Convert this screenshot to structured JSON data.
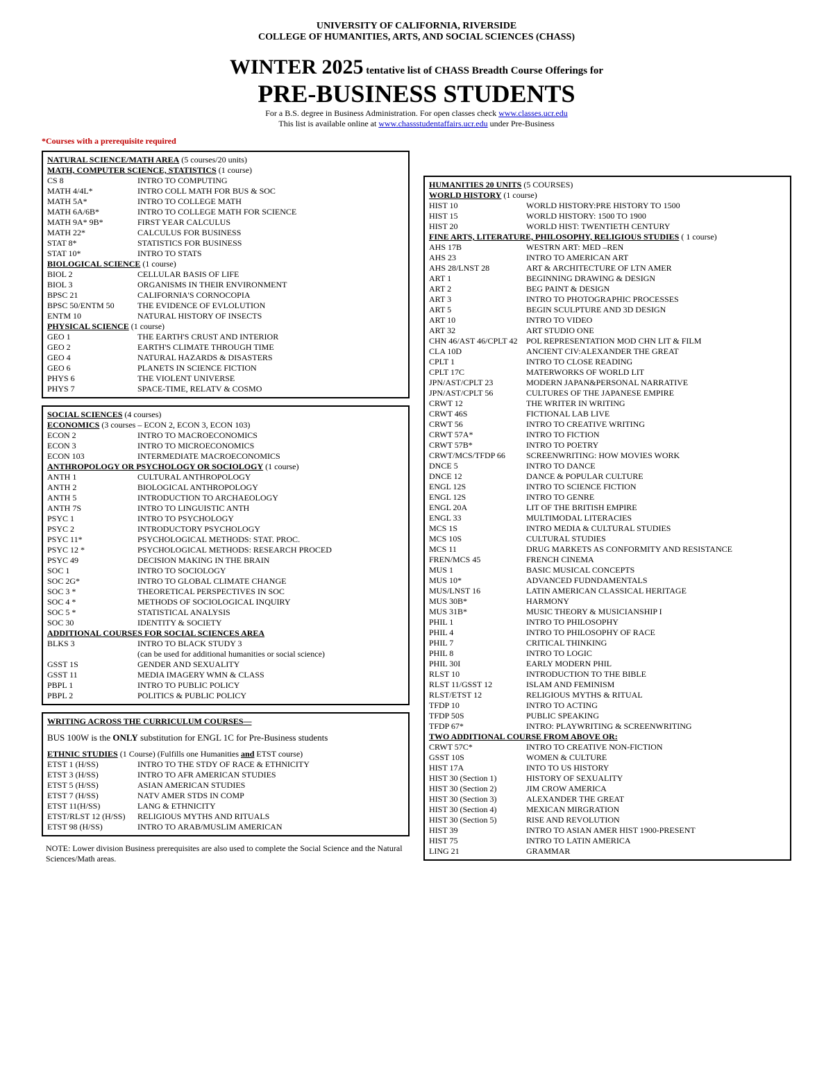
{
  "header": {
    "university": "UNIVERSITY OF CALIFORNIA, RIVERSIDE",
    "college": "COLLEGE OF HUMANITIES, ARTS, AND SOCIAL SCIENCES (CHASS)",
    "term_big": "WINTER 2025",
    "term_rest": " tentative list of CHASS Breadth Course Offerings for",
    "title": "PRE-BUSINESS STUDENTS",
    "sub1_a": "For a B.S. degree in Business Administration.  For open classes check ",
    "sub1_link": "www.classes.ucr.edu",
    "sub2_a": "This list is available online at ",
    "sub2_link": "www.chassstudentaffairs.ucr.edu",
    "sub2_b": " under Pre-Business",
    "prereq_note": "*Courses with a prerequisite required"
  },
  "left": {
    "box1": {
      "area_head": "NATURAL SCIENCE/MATH AREA",
      "area_head_note": " (5 courses/20 units)",
      "sec1_head": "MATH, COMPUTER SCIENCE, STATISTICS",
      "sec1_note": " (1 course)",
      "sec1_rows": [
        {
          "c": "CS  8",
          "t": "INTRO TO COMPUTING"
        },
        {
          "c": "MATH 4/4L*",
          "t": "INTRO COLL MATH FOR BUS & SOC"
        },
        {
          "c": "MATH 5A*",
          "t": "INTRO TO COLLEGE MATH"
        },
        {
          "c": "MATH 6A/6B*",
          "t": "INTRO TO COLLEGE MATH FOR SCIENCE"
        },
        {
          "c": "MATH 9A* 9B*",
          "t": "FIRST YEAR CALCULUS"
        },
        {
          "c": "MATH 22*",
          "t": "CALCULUS FOR BUSINESS"
        },
        {
          "c": "STAT 8*",
          "t": "STATISTICS FOR BUSINESS"
        },
        {
          "c": "STAT 10*",
          "t": "INTRO TO STATS"
        }
      ],
      "sec2_head": "BIOLOGICAL SCIENCE",
      "sec2_note": " (1 course)",
      "sec2_rows": [
        {
          "c": "BIOL 2",
          "t": "CELLULAR BASIS OF LIFE"
        },
        {
          "c": "BIOL 3",
          "t": "ORGANISMS IN THEIR ENVIRONMENT"
        },
        {
          "c": "BPSC 21",
          "t": "CALIFORNIA'S CORNOCOPIA"
        },
        {
          "c": "BPSC 50/ENTM 50",
          "t": "THE EVIDENCE OF EVLOLUTION"
        },
        {
          "c": "ENTM 10",
          "t": "NATURAL HISTORY OF INSECTS"
        }
      ],
      "sec3_head": "PHYSICAL SCIENCE",
      "sec3_note": " (1 course)",
      "sec3_rows": [
        {
          "c": "GEO 1",
          "t": "THE EARTH'S CRUST AND INTERIOR"
        },
        {
          "c": "GEO 2",
          "t": "EARTH'S CLIMATE THROUGH TIME"
        },
        {
          "c": "GEO 4",
          "t": "NATURAL HAZARDS & DISASTERS"
        },
        {
          "c": "GEO 6",
          "t": "PLANETS IN SCIENCE FICTION"
        },
        {
          "c": "PHYS 6",
          "t": "THE VIOLENT UNIVERSE"
        },
        {
          "c": "PHYS 7",
          "t": "SPACE-TIME, RELATV & COSMO"
        }
      ]
    },
    "box2": {
      "area_head": "SOCIAL SCIENCES",
      "area_head_note": " (4 courses)",
      "sec1_head": "ECONOMICS",
      "sec1_note": " (3 courses – ECON 2, ECON 3, ECON 103)",
      "sec1_rows": [
        {
          "c": "ECON 2",
          "t": "INTRO TO MACROECONOMICS"
        },
        {
          "c": "ECON 3",
          "t": "INTRO TO MICROECONOMICS"
        },
        {
          "c": "ECON 103",
          "t": "INTERMEDIATE MACROECONOMICS"
        }
      ],
      "sec2_head": "ANTHROPOLOGY OR PSYCHOLOGY OR SOCIOLOGY",
      "sec2_note": "  (1 course)",
      "sec2_rows": [
        {
          "c": "ANTH 1",
          "t": "CULTURAL ANTHROPOLOGY"
        },
        {
          "c": "ANTH 2",
          "t": "BIOLOGICAL ANTHROPOLOGY"
        },
        {
          "c": "ANTH 5",
          "t": "INTRODUCTION TO ARCHAEOLOGY"
        },
        {
          "c": "ANTH 7S",
          "t": "INTRO TO LINGUISTIC ANTH"
        },
        {
          "c": "PSYC 1",
          "t": "INTRO TO PSYCHOLOGY"
        },
        {
          "c": "PSYC 2",
          "t": "INTRODUCTORY PSYCHOLOGY"
        },
        {
          "c": "PSYC 11*",
          "t": "PSYCHOLOGICAL METHODS: STAT. PROC."
        },
        {
          "c": "PSYC 12 *",
          "t": "PSYCHOLOGICAL METHODS: RESEARCH PROCED"
        },
        {
          "c": "PSYC 49",
          "t": "DECISION MAKING IN THE BRAIN"
        },
        {
          "c": "SOC 1",
          "t": "INTRO TO SOCIOLOGY"
        },
        {
          "c": "SOC 2G*",
          "t": "INTRO TO GLOBAL CLIMATE CHANGE"
        },
        {
          "c": "SOC 3 *",
          "t": "THEORETICAL PERSPECTIVES IN SOC"
        },
        {
          "c": "SOC 4 *",
          "t": "METHODS OF SOCIOLOGICAL INQUIRY"
        },
        {
          "c": "SOC 5 *",
          "t": "STATISTICAL ANALYSIS"
        },
        {
          "c": "SOC 30",
          "t": "IDENTITY & SOCIETY"
        }
      ],
      "sec3_head": "ADDITIONAL COURSES FOR SOCIAL SCIENCES AREA",
      "sec3_rows": [
        {
          "c": "BLKS 3",
          "t": "INTRO TO BLACK STUDY 3"
        },
        {
          "c": "",
          "t": "(can be used for additional humanities or social science)"
        },
        {
          "c": "GSST 1S",
          "t": "GENDER AND SEXUALITY"
        },
        {
          "c": "GSST 11",
          "t": "MEDIA IMAGERY WMN & CLASS"
        },
        {
          "c": "PBPL 1",
          "t": "INTRO TO PUBLIC POLICY"
        },
        {
          "c": "PBPL 2",
          "t": "POLITICS & PUBLIC POLICY"
        }
      ]
    },
    "box3": {
      "head": "WRITING ACROSS THE CURRICULUM COURSES—",
      "wac_a": "BUS 100W is the ",
      "wac_only": "ONLY",
      "wac_b": " substitution for ENGL 1C for Pre-Business students",
      "etst_head": "ETHNIC STUDIES",
      "etst_note_a": " (1 Course) (Fulfills one Humanities ",
      "etst_and": "and",
      "etst_note_b": " ETST course)",
      "etst_rows": [
        {
          "c": "ETST 1 (H/SS)",
          "t": "INTRO TO THE STDY OF RACE & ETHNICITY"
        },
        {
          "c": "ETST 3 (H/SS)",
          "t": "INTRO TO AFR AMERICAN STUDIES"
        },
        {
          "c": "ETST 5 (H/SS)",
          "t": "ASIAN AMERICAN STUDIES"
        },
        {
          "c": "ETST 7 (H/SS)",
          "t": "NATV AMER STDS IN COMP"
        },
        {
          "c": "ETST 11(H/SS)",
          "t": "LANG & ETHNICITY"
        },
        {
          "c": "ETST/RLST 12 (H/SS)",
          "t": "RELIGIOUS MYTHS AND RITUALS"
        },
        {
          "c": "ETST 98 (H/SS)",
          "t": "INTRO TO ARAB/MUSLIM AMERICAN"
        }
      ]
    },
    "footnote": "NOTE: Lower division Business prerequisites are also used to complete the Social Science and the Natural Sciences/Math areas."
  },
  "right": {
    "area_head": "HUMANITIES 20 UNITS",
    "area_head_note": " (5 COURSES)",
    "sec1_head": "WORLD HISTORY",
    "sec1_note": " (1 course)",
    "sec1_rows": [
      {
        "c": "HIST 10",
        "t": "WORLD HISTORY:PRE HISTORY TO 1500"
      },
      {
        "c": "HIST 15",
        "t": "WORLD HISTORY: 1500 TO 1900"
      },
      {
        "c": "HIST 20",
        "t": "WORLD HIST: TWENTIETH CENTURY"
      }
    ],
    "sec2_head": "FINE ARTS, LITERATURE, PHILOSOPHY, RELIGIOUS STUDIES",
    "sec2_note": " ( 1 course)",
    "sec2_rows": [
      {
        "c": "AHS 17B",
        "t": "WESTRN ART: MED –REN"
      },
      {
        "c": "AHS 23",
        "t": "INTRO TO AMERICAN ART"
      },
      {
        "c": "AHS 28/LNST 28",
        "t": "ART & ARCHITECTURE OF LTN AMER"
      },
      {
        "c": "ART 1",
        "t": "BEGINNING DRAWING & DESIGN"
      },
      {
        "c": "ART 2",
        "t": "BEG PAINT & DESIGN"
      },
      {
        "c": "ART 3",
        "t": "INTRO TO PHOTOGRAPHIC PROCESSES"
      },
      {
        "c": "ART 5",
        "t": "BEGIN SCULPTURE AND 3D DESIGN"
      },
      {
        "c": "ART 10",
        "t": "INTRO TO VIDEO"
      },
      {
        "c": "ART 32",
        "t": "ART STUDIO ONE"
      },
      {
        "c": "CHN 46/AST 46/CPLT 42",
        "t": "POL REPRESENTATION MOD CHN LIT & FILM"
      },
      {
        "c": "CLA 10D",
        "t": "ANCIENT CIV:ALEXANDER THE GREAT"
      },
      {
        "c": "CPLT 1",
        "t": "INTRO TO CLOSE READING"
      },
      {
        "c": "CPLT 17C",
        "t": "MATERWORKS OF WORLD LIT"
      },
      {
        "c": "JPN/AST/CPLT 23",
        "t": "MODERN JAPAN&PERSONAL NARRATIVE"
      },
      {
        "c": "JPN/AST/CPLT 56",
        "t": "CULTURES OF THE JAPANESE EMPIRE"
      },
      {
        "c": "CRWT 12",
        "t": "THE WRITER IN WRITING"
      },
      {
        "c": "CRWT 46S",
        "t": "FICTIONAL LAB LIVE"
      },
      {
        "c": "CRWT 56",
        "t": "INTRO TO CREATIVE WRITING"
      },
      {
        "c": "CRWT 57A*",
        "t": "INTRO TO FICTION"
      },
      {
        "c": "CRWT 57B*",
        "t": "INTRO TO POETRY"
      },
      {
        "c": "CRWT/MCS/TFDP 66",
        "t": "SCREENWRITING: HOW MOVIES WORK"
      },
      {
        "c": "DNCE 5",
        "t": "INTRO TO DANCE"
      },
      {
        "c": "DNCE 12",
        "t": "DANCE & POPULAR CULTURE"
      },
      {
        "c": "ENGL 12S",
        "t": "INTRO TO SCIENCE FICTION"
      },
      {
        "c": "ENGL 12S",
        "t": "INTRO TO GENRE"
      },
      {
        "c": "ENGL 20A",
        "t": "LIT OF THE BRITISH EMPIRE"
      },
      {
        "c": "ENGL 33",
        "t": "MULTIMODAL LITERACIES"
      },
      {
        "c": "MCS 1S",
        "t": "INTRO MEDIA & CULTURAL STUDIES"
      },
      {
        "c": "MCS 10S",
        "t": "CULTURAL STUDIES"
      },
      {
        "c": "MCS 11",
        "t": "DRUG MARKETS AS CONFORMITY AND RESISTANCE"
      },
      {
        "c": "FREN/MCS 45",
        "t": "FRENCH CINEMA"
      },
      {
        "c": "MUS 1",
        "t": "BASIC MUSICAL CONCEPTS"
      },
      {
        "c": "MUS 10*",
        "t": "ADVANCED FUDNDAMENTALS"
      },
      {
        "c": "MUS/LNST 16",
        "t": "LATIN AMERICAN CLASSICAL HERITAGE"
      },
      {
        "c": "MUS 30B*",
        "t": "HARMONY"
      },
      {
        "c": "MUS 31B*",
        "t": "MUSIC THEORY & MUSICIANSHIP I"
      },
      {
        "c": "PHIL 1",
        "t": "INTRO TO PHILOSOPHY"
      },
      {
        "c": "PHIL 4",
        "t": "INTRO TO PHILOSOPHY OF RACE"
      },
      {
        "c": "PHIL 7",
        "t": "CRITICAL THINKING"
      },
      {
        "c": "PHIL 8",
        "t": "INTRO TO LOGIC"
      },
      {
        "c": "PHIL 30I",
        "t": "EARLY MODERN PHIL"
      },
      {
        "c": "RLST 10",
        "t": "INTRODUCTION TO THE BIBLE"
      },
      {
        "c": "RLST 11/GSST 12",
        "t": "ISLAM AND FEMINISM"
      },
      {
        "c": "RLST/ETST 12",
        "t": "RELIGIOUS MYTHS & RITUAL"
      },
      {
        "c": "TFDP 10",
        "t": "INTRO TO ACTING"
      },
      {
        "c": "TFDP 50S",
        "t": "PUBLIC SPEAKING"
      },
      {
        "c": "TFDP 67*",
        "t": "INTRO: PLAYWRITING & SCREENWRITING"
      }
    ],
    "sec3_head": "TWO ADDITIONAL COURSE FROM ABOVE OR:",
    "sec3_rows": [
      {
        "c": "CRWT 57C*",
        "t": "INTRO TO CREATIVE NON-FICTION"
      },
      {
        "c": "GSST 10S",
        "t": "WOMEN & CULTURE"
      },
      {
        "c": "HIST 17A",
        "t": "INTO TO US HISTORY"
      },
      {
        "c": "HIST 30 (Section 1)",
        "t": "HISTORY OF SEXUALITY"
      },
      {
        "c": "HIST 30 (Section 2)",
        "t": "JIM CROW AMERICA"
      },
      {
        "c": "HIST 30 (Section 3)",
        "t": "ALEXANDER THE GREAT"
      },
      {
        "c": "HIST 30 (Section 4)",
        "t": "MEXICAN MIRGRATION"
      },
      {
        "c": "HIST 30 (Section 5)",
        "t": "RISE AND REVOLUTION"
      },
      {
        "c": "HIST 39",
        "t": "INTRO TO ASIAN AMER HIST 1900-PRESENT"
      },
      {
        "c": "HIST 75",
        "t": "INTRO TO LATIN AMERICA"
      },
      {
        "c": "LING 21",
        "t": "GRAMMAR"
      }
    ]
  }
}
